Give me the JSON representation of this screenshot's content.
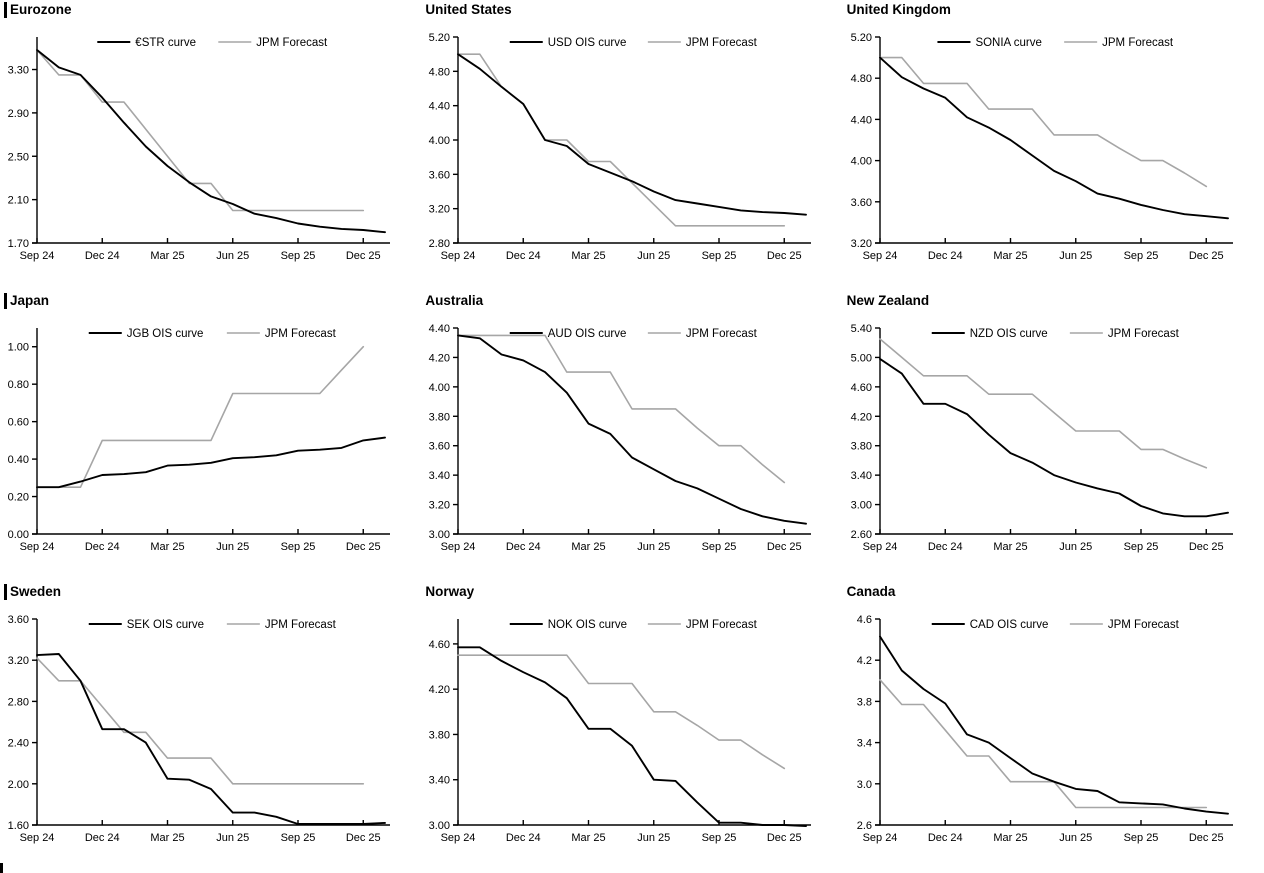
{
  "page": {
    "colors": {
      "series_black": "#000000",
      "forecast_gray": "#a6a6a6",
      "background": "#ffffff"
    },
    "x_axis_note": "monthly points from Sep 2024 (index 0) to Dec 2025 (index 15); market curves extend one step past Dec 25"
  },
  "chart_data": [
    {
      "type": "line",
      "region": "Eurozone",
      "x_tick_labels": [
        "Sep 24",
        "Dec 24",
        "Mar 25",
        "Jun 25",
        "Sep 25",
        "Dec 25"
      ],
      "x_tick_months": [
        0,
        3,
        6,
        9,
        12,
        15
      ],
      "y_tick_labels": [
        "1.70",
        "2.10",
        "2.50",
        "2.90",
        "3.30"
      ],
      "y_ticks": [
        1.7,
        2.1,
        2.5,
        2.9,
        3.3
      ],
      "ylim": [
        1.7,
        3.6
      ],
      "series": [
        {
          "name": "€STR curve",
          "color": "#000000",
          "values": [
            3.48,
            3.32,
            3.25,
            3.04,
            2.81,
            2.59,
            2.41,
            2.26,
            2.13,
            2.06,
            1.97,
            1.93,
            1.88,
            1.85,
            1.83,
            1.82,
            1.8
          ]
        },
        {
          "name": "JPM Forecast",
          "color": "#a6a6a6",
          "values": [
            3.48,
            3.25,
            3.25,
            3.0,
            3.0,
            2.75,
            2.5,
            2.25,
            2.25,
            2.0,
            2.0,
            2.0,
            2.0,
            2.0,
            2.0,
            2.0
          ]
        }
      ]
    },
    {
      "type": "line",
      "region": "United States",
      "x_tick_labels": [
        "Sep 24",
        "Dec 24",
        "Mar 25",
        "Jun 25",
        "Sep 25",
        "Dec 25"
      ],
      "x_tick_months": [
        0,
        3,
        6,
        9,
        12,
        15
      ],
      "y_tick_labels": [
        "2.80",
        "3.20",
        "3.60",
        "4.00",
        "4.40",
        "4.80",
        "5.20"
      ],
      "y_ticks": [
        2.8,
        3.2,
        3.6,
        4.0,
        4.4,
        4.8,
        5.2
      ],
      "ylim": [
        2.8,
        5.2
      ],
      "series": [
        {
          "name": "USD OIS curve",
          "color": "#000000",
          "values": [
            5.0,
            4.83,
            4.62,
            4.42,
            4.0,
            3.93,
            3.72,
            3.62,
            3.52,
            3.4,
            3.3,
            3.26,
            3.22,
            3.18,
            3.16,
            3.15,
            3.13
          ]
        },
        {
          "name": "JPM Forecast",
          "color": "#a6a6a6",
          "values": [
            5.0,
            5.0,
            4.62,
            4.42,
            4.0,
            4.0,
            3.75,
            3.75,
            3.5,
            3.25,
            3.0,
            3.0,
            3.0,
            3.0,
            3.0,
            3.0
          ]
        }
      ]
    },
    {
      "type": "line",
      "region": "United Kingdom",
      "x_tick_labels": [
        "Sep 24",
        "Dec 24",
        "Mar 25",
        "Jun 25",
        "Sep 25",
        "Dec 25"
      ],
      "x_tick_months": [
        0,
        3,
        6,
        9,
        12,
        15
      ],
      "y_tick_labels": [
        "3.20",
        "3.60",
        "4.00",
        "4.40",
        "4.80",
        "5.20"
      ],
      "y_ticks": [
        3.2,
        3.6,
        4.0,
        4.4,
        4.8,
        5.2
      ],
      "ylim": [
        3.2,
        5.2
      ],
      "series": [
        {
          "name": "SONIA curve",
          "color": "#000000",
          "values": [
            5.0,
            4.81,
            4.7,
            4.61,
            4.42,
            4.32,
            4.2,
            4.05,
            3.9,
            3.8,
            3.68,
            3.63,
            3.57,
            3.52,
            3.48,
            3.46,
            3.44
          ]
        },
        {
          "name": "JPM Forecast",
          "color": "#a6a6a6",
          "values": [
            5.0,
            5.0,
            4.75,
            4.75,
            4.75,
            4.5,
            4.5,
            4.5,
            4.25,
            4.25,
            4.25,
            4.12,
            4.0,
            4.0,
            3.88,
            3.75
          ]
        }
      ]
    },
    {
      "type": "line",
      "region": "Japan",
      "x_tick_labels": [
        "Sep 24",
        "Dec 24",
        "Mar 25",
        "Jun 25",
        "Sep 25",
        "Dec 25"
      ],
      "x_tick_months": [
        0,
        3,
        6,
        9,
        12,
        15
      ],
      "y_tick_labels": [
        "0.00",
        "0.20",
        "0.40",
        "0.60",
        "0.80",
        "1.00"
      ],
      "y_ticks": [
        0.0,
        0.2,
        0.4,
        0.6,
        0.8,
        1.0
      ],
      "ylim": [
        0.0,
        1.1
      ],
      "series": [
        {
          "name": "JGB OIS curve",
          "color": "#000000",
          "values": [
            0.25,
            0.25,
            0.28,
            0.315,
            0.32,
            0.33,
            0.365,
            0.37,
            0.38,
            0.405,
            0.41,
            0.42,
            0.445,
            0.45,
            0.46,
            0.5,
            0.515
          ]
        },
        {
          "name": "JPM Forecast",
          "color": "#a6a6a6",
          "values": [
            0.25,
            0.25,
            0.25,
            0.5,
            0.5,
            0.5,
            0.5,
            0.5,
            0.5,
            0.75,
            0.75,
            0.75,
            0.75,
            0.75,
            0.875,
            1.0
          ]
        }
      ]
    },
    {
      "type": "line",
      "region": "Australia",
      "x_tick_labels": [
        "Sep 24",
        "Dec 24",
        "Mar 25",
        "Jun 25",
        "Sep 25",
        "Dec 25"
      ],
      "x_tick_months": [
        0,
        3,
        6,
        9,
        12,
        15
      ],
      "y_tick_labels": [
        "3.00",
        "3.20",
        "3.40",
        "3.60",
        "3.80",
        "4.00",
        "4.20",
        "4.40"
      ],
      "y_ticks": [
        3.0,
        3.2,
        3.4,
        3.6,
        3.8,
        4.0,
        4.2,
        4.4
      ],
      "ylim": [
        3.0,
        4.4
      ],
      "series": [
        {
          "name": "AUD OIS curve",
          "color": "#000000",
          "values": [
            4.35,
            4.33,
            4.22,
            4.18,
            4.1,
            3.96,
            3.75,
            3.68,
            3.52,
            3.44,
            3.36,
            3.31,
            3.24,
            3.17,
            3.12,
            3.09,
            3.07
          ]
        },
        {
          "name": "JPM Forecast",
          "color": "#a6a6a6",
          "values": [
            4.35,
            4.35,
            4.35,
            4.35,
            4.35,
            4.1,
            4.1,
            4.1,
            3.85,
            3.85,
            3.85,
            3.72,
            3.6,
            3.6,
            3.47,
            3.35
          ]
        }
      ]
    },
    {
      "type": "line",
      "region": "New Zealand",
      "x_tick_labels": [
        "Sep 24",
        "Dec 24",
        "Mar 25",
        "Jun 25",
        "Sep 25",
        "Dec 25"
      ],
      "x_tick_months": [
        0,
        3,
        6,
        9,
        12,
        15
      ],
      "y_tick_labels": [
        "2.60",
        "3.00",
        "3.40",
        "3.80",
        "4.20",
        "4.60",
        "5.00",
        "5.40"
      ],
      "y_ticks": [
        2.6,
        3.0,
        3.4,
        3.8,
        4.2,
        4.6,
        5.0,
        5.4
      ],
      "ylim": [
        2.6,
        5.4
      ],
      "series": [
        {
          "name": "NZD OIS curve",
          "color": "#000000",
          "values": [
            4.98,
            4.78,
            4.37,
            4.37,
            4.23,
            3.95,
            3.7,
            3.57,
            3.4,
            3.3,
            3.22,
            3.15,
            2.98,
            2.88,
            2.84,
            2.84,
            2.89
          ]
        },
        {
          "name": "JPM Forecast",
          "color": "#a6a6a6",
          "values": [
            5.25,
            5.0,
            4.75,
            4.75,
            4.75,
            4.5,
            4.5,
            4.5,
            4.25,
            4.0,
            4.0,
            4.0,
            3.75,
            3.75,
            3.62,
            3.5
          ]
        }
      ]
    },
    {
      "type": "line",
      "region": "Sweden",
      "x_tick_labels": [
        "Sep 24",
        "Dec 24",
        "Mar 25",
        "Jun 25",
        "Sep 25",
        "Dec 25"
      ],
      "x_tick_months": [
        0,
        3,
        6,
        9,
        12,
        15
      ],
      "y_tick_labels": [
        "1.60",
        "2.00",
        "2.40",
        "2.80",
        "3.20",
        "3.60"
      ],
      "y_ticks": [
        1.6,
        2.0,
        2.4,
        2.8,
        3.2,
        3.6
      ],
      "ylim": [
        1.6,
        3.6
      ],
      "series": [
        {
          "name": "SEK OIS curve",
          "color": "#000000",
          "values": [
            3.25,
            3.26,
            3.0,
            2.53,
            2.53,
            2.4,
            2.05,
            2.04,
            1.95,
            1.72,
            1.72,
            1.68,
            1.61,
            1.61,
            1.61,
            1.61,
            1.62
          ]
        },
        {
          "name": "JPM Forecast",
          "color": "#a6a6a6",
          "values": [
            3.22,
            3.0,
            3.0,
            2.75,
            2.5,
            2.5,
            2.25,
            2.25,
            2.25,
            2.0,
            2.0,
            2.0,
            2.0,
            2.0,
            2.0,
            2.0
          ]
        }
      ]
    },
    {
      "type": "line",
      "region": "Norway",
      "x_tick_labels": [
        "Sep 24",
        "Dec 24",
        "Mar 25",
        "Jun 25",
        "Sep 25",
        "Dec 25"
      ],
      "x_tick_months": [
        0,
        3,
        6,
        9,
        12,
        15
      ],
      "y_tick_labels": [
        "3.00",
        "3.40",
        "3.80",
        "4.20",
        "4.60"
      ],
      "y_ticks": [
        3.0,
        3.4,
        3.8,
        4.2,
        4.6
      ],
      "ylim": [
        3.0,
        4.82
      ],
      "series": [
        {
          "name": "NOK OIS curve",
          "color": "#000000",
          "values": [
            4.57,
            4.57,
            4.45,
            4.35,
            4.26,
            4.12,
            3.85,
            3.85,
            3.7,
            3.4,
            3.39,
            3.2,
            3.02,
            3.02,
            3.0,
            3.0,
            2.99
          ]
        },
        {
          "name": "JPM Forecast",
          "color": "#a6a6a6",
          "values": [
            4.5,
            4.5,
            4.5,
            4.5,
            4.5,
            4.5,
            4.25,
            4.25,
            4.25,
            4.0,
            4.0,
            3.88,
            3.75,
            3.75,
            3.62,
            3.5
          ]
        }
      ]
    },
    {
      "type": "line",
      "region": "Canada",
      "x_tick_labels": [
        "Sep 24",
        "Dec 24",
        "Mar 25",
        "Jun 25",
        "Sep 25",
        "Dec 25"
      ],
      "x_tick_months": [
        0,
        3,
        6,
        9,
        12,
        15
      ],
      "y_tick_labels": [
        "2.6",
        "3.0",
        "3.4",
        "3.8",
        "4.2",
        "4.6"
      ],
      "y_ticks": [
        2.6,
        3.0,
        3.4,
        3.8,
        4.2,
        4.6
      ],
      "ylim": [
        2.6,
        4.6
      ],
      "series": [
        {
          "name": "CAD OIS curve",
          "color": "#000000",
          "values": [
            4.43,
            4.1,
            3.92,
            3.78,
            3.48,
            3.4,
            3.25,
            3.1,
            3.02,
            2.95,
            2.93,
            2.82,
            2.81,
            2.8,
            2.76,
            2.73,
            2.71
          ]
        },
        {
          "name": "JPM Forecast",
          "color": "#a6a6a6",
          "values": [
            4.01,
            3.77,
            3.77,
            3.52,
            3.27,
            3.27,
            3.02,
            3.02,
            3.02,
            2.77,
            2.77,
            2.77,
            2.77,
            2.77,
            2.77,
            2.77
          ]
        }
      ]
    }
  ]
}
